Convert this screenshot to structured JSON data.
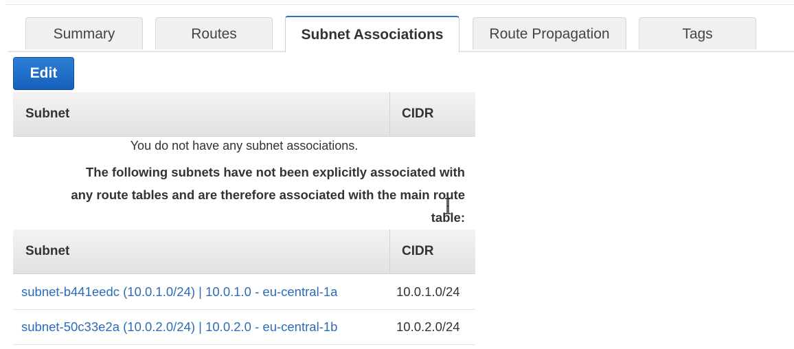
{
  "tabs": [
    {
      "label": "Summary",
      "active": false
    },
    {
      "label": "Routes",
      "active": false
    },
    {
      "label": "Subnet Associations",
      "active": true
    },
    {
      "label": "Route Propagation",
      "active": false
    },
    {
      "label": "Tags",
      "active": false
    }
  ],
  "edit_button": {
    "label": "Edit"
  },
  "associations_table": {
    "headers": {
      "subnet": "Subnet",
      "cidr": "CIDR"
    },
    "empty_message": "You do not have any subnet associations."
  },
  "notice": {
    "line1": "The following subnets have not been explicitly associated with",
    "line2": "any route tables and are therefore associated with the main route",
    "line3": "table:"
  },
  "main_table": {
    "headers": {
      "subnet": "Subnet",
      "cidr": "CIDR"
    },
    "rows": [
      {
        "subnet": "subnet-b441eedc (10.0.1.0/24) | 10.0.1.0 - eu-central-1a",
        "cidr": "10.0.1.0/24"
      },
      {
        "subnet": "subnet-50c33e2a (10.0.2.0/24) | 10.0.2.0 - eu-central-1b",
        "cidr": "10.0.2.0/24"
      }
    ]
  },
  "colors": {
    "accent": "#1560bd",
    "link": "#2b6cb8",
    "active_tab_border": "#2a6fc2"
  },
  "icons": {
    "cursor": "text-cursor-icon"
  }
}
